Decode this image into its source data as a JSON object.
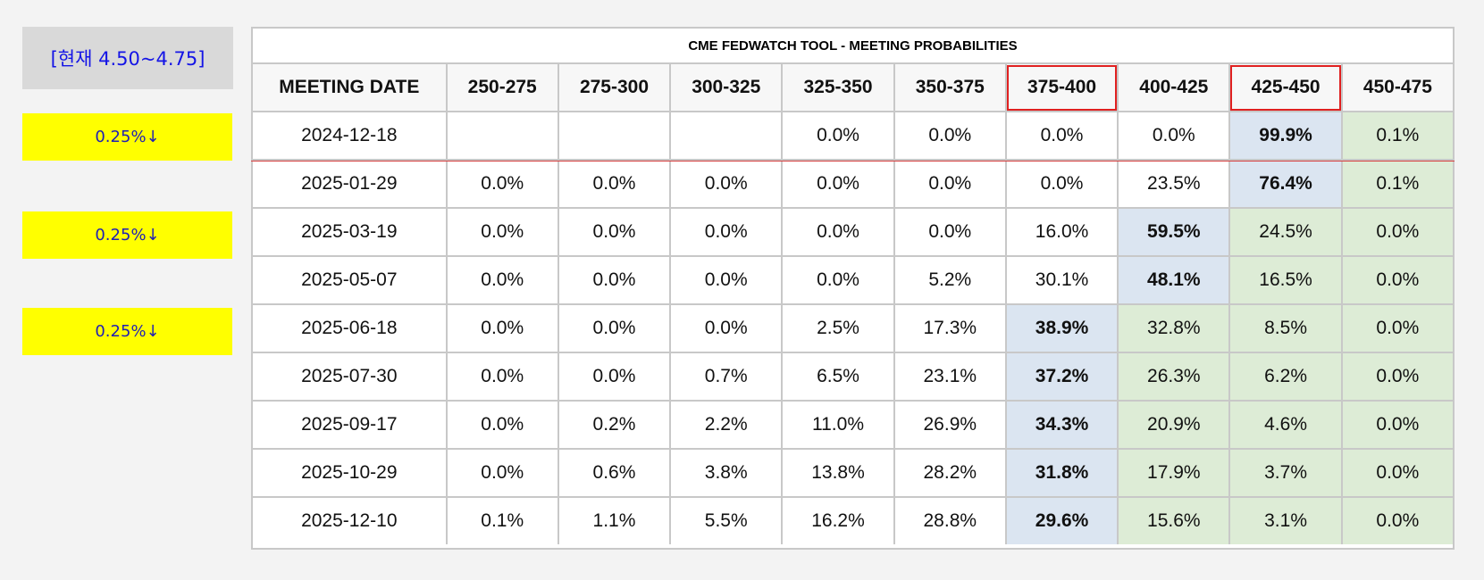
{
  "side_panel": {
    "current_label": "[현재 4.50~4.75]",
    "cut_labels": [
      "0.25%↓",
      "0.25%↓",
      "0.25%↓"
    ]
  },
  "table": {
    "title": "CME FEDWATCH TOOL - MEETING PROBABILITIES",
    "headers": [
      "MEETING DATE",
      "250-275",
      "275-300",
      "300-325",
      "325-350",
      "350-375",
      "375-400",
      "400-425",
      "425-450",
      "450-475"
    ],
    "boxed_headers": [
      6,
      8
    ],
    "rows": [
      {
        "date": "2024-12-18",
        "values": [
          "",
          "",
          "",
          "0.0%",
          "0.0%",
          "0.0%",
          "0.0%",
          "99.9%",
          "0.1%"
        ],
        "blue": [
          7
        ],
        "green": [
          8
        ]
      },
      {
        "date": "2025-01-29",
        "values": [
          "0.0%",
          "0.0%",
          "0.0%",
          "0.0%",
          "0.0%",
          "0.0%",
          "23.5%",
          "76.4%",
          "0.1%"
        ],
        "blue": [
          7
        ],
        "green": [
          8
        ]
      },
      {
        "date": "2025-03-19",
        "values": [
          "0.0%",
          "0.0%",
          "0.0%",
          "0.0%",
          "0.0%",
          "16.0%",
          "59.5%",
          "24.5%",
          "0.0%"
        ],
        "blue": [
          6
        ],
        "green": [
          7,
          8
        ]
      },
      {
        "date": "2025-05-07",
        "values": [
          "0.0%",
          "0.0%",
          "0.0%",
          "0.0%",
          "5.2%",
          "30.1%",
          "48.1%",
          "16.5%",
          "0.0%"
        ],
        "blue": [
          6
        ],
        "green": [
          7,
          8
        ]
      },
      {
        "date": "2025-06-18",
        "values": [
          "0.0%",
          "0.0%",
          "0.0%",
          "2.5%",
          "17.3%",
          "38.9%",
          "32.8%",
          "8.5%",
          "0.0%"
        ],
        "blue": [
          5
        ],
        "green": [
          6,
          7,
          8
        ]
      },
      {
        "date": "2025-07-30",
        "values": [
          "0.0%",
          "0.0%",
          "0.7%",
          "6.5%",
          "23.1%",
          "37.2%",
          "26.3%",
          "6.2%",
          "0.0%"
        ],
        "blue": [
          5
        ],
        "green": [
          6,
          7,
          8
        ]
      },
      {
        "date": "2025-09-17",
        "values": [
          "0.0%",
          "0.2%",
          "2.2%",
          "11.0%",
          "26.9%",
          "34.3%",
          "20.9%",
          "4.6%",
          "0.0%"
        ],
        "blue": [
          5
        ],
        "green": [
          6,
          7,
          8
        ]
      },
      {
        "date": "2025-10-29",
        "values": [
          "0.0%",
          "0.6%",
          "3.8%",
          "13.8%",
          "28.2%",
          "31.8%",
          "17.9%",
          "3.7%",
          "0.0%"
        ],
        "blue": [
          5
        ],
        "green": [
          6,
          7,
          8
        ]
      },
      {
        "date": "2025-12-10",
        "values": [
          "0.1%",
          "1.1%",
          "5.5%",
          "16.2%",
          "28.8%",
          "29.6%",
          "15.6%",
          "3.1%",
          "0.0%"
        ],
        "blue": [
          5
        ],
        "green": [
          6,
          7,
          8
        ]
      }
    ]
  },
  "colors": {
    "highlight_blue": "#dbe5f1",
    "highlight_green": "#ddecd6",
    "box_red": "#e02020",
    "cut_yellow": "#ffff00",
    "current_text": "#1414e6"
  },
  "chart_data": {
    "type": "table",
    "title": "CME FEDWATCH TOOL - MEETING PROBABILITIES",
    "columns": [
      "MEETING DATE",
      "250-275",
      "275-300",
      "300-325",
      "325-350",
      "350-375",
      "375-400",
      "400-425",
      "425-450",
      "450-475"
    ],
    "rows": [
      [
        "2024-12-18",
        "",
        "",
        "",
        "0.0%",
        "0.0%",
        "0.0%",
        "0.0%",
        "99.9%",
        "0.1%"
      ],
      [
        "2025-01-29",
        "0.0%",
        "0.0%",
        "0.0%",
        "0.0%",
        "0.0%",
        "0.0%",
        "23.5%",
        "76.4%",
        "0.1%"
      ],
      [
        "2025-03-19",
        "0.0%",
        "0.0%",
        "0.0%",
        "0.0%",
        "0.0%",
        "16.0%",
        "59.5%",
        "24.5%",
        "0.0%"
      ],
      [
        "2025-05-07",
        "0.0%",
        "0.0%",
        "0.0%",
        "0.0%",
        "5.2%",
        "30.1%",
        "48.1%",
        "16.5%",
        "0.0%"
      ],
      [
        "2025-06-18",
        "0.0%",
        "0.0%",
        "0.0%",
        "2.5%",
        "17.3%",
        "38.9%",
        "32.8%",
        "8.5%",
        "0.0%"
      ],
      [
        "2025-07-30",
        "0.0%",
        "0.0%",
        "0.7%",
        "6.5%",
        "23.1%",
        "37.2%",
        "26.3%",
        "6.2%",
        "0.0%"
      ],
      [
        "2025-09-17",
        "0.0%",
        "0.2%",
        "2.2%",
        "11.0%",
        "26.9%",
        "34.3%",
        "20.9%",
        "4.6%",
        "0.0%"
      ],
      [
        "2025-10-29",
        "0.0%",
        "0.6%",
        "3.8%",
        "13.8%",
        "28.2%",
        "31.8%",
        "17.9%",
        "3.7%",
        "0.0%"
      ],
      [
        "2025-12-10",
        "0.1%",
        "1.1%",
        "5.5%",
        "16.2%",
        "28.8%",
        "29.6%",
        "15.6%",
        "3.1%",
        "0.0%"
      ]
    ]
  }
}
